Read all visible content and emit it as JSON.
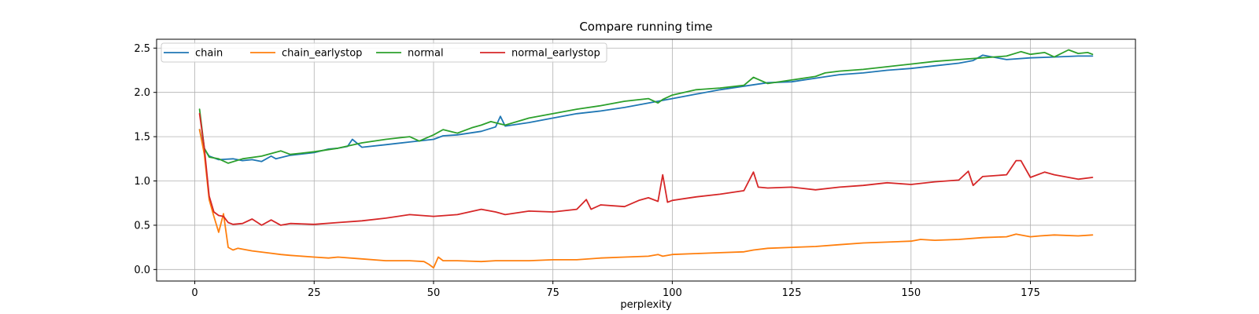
{
  "chart_data": {
    "type": "line",
    "title": "Compare running time",
    "xlabel": "perplexity",
    "ylabel": "",
    "xlim": [
      -8,
      197
    ],
    "ylim": [
      -0.13,
      2.6
    ],
    "xticks": [
      0,
      25,
      50,
      75,
      100,
      125,
      150,
      175
    ],
    "yticks": [
      0.0,
      0.5,
      1.0,
      1.5,
      2.0,
      2.5
    ],
    "grid": true,
    "legend_position": "top-left",
    "legend_columns": 4,
    "series": [
      {
        "name": "chain",
        "color": "#1f77b4",
        "x": [
          1,
          2,
          3,
          5,
          8,
          10,
          12,
          14,
          16,
          17,
          20,
          25,
          28,
          30,
          32,
          33,
          35,
          40,
          45,
          50,
          52,
          55,
          60,
          63,
          64,
          65,
          70,
          75,
          80,
          85,
          90,
          95,
          100,
          105,
          110,
          115,
          120,
          125,
          130,
          135,
          140,
          145,
          150,
          155,
          160,
          163,
          165,
          170,
          175,
          180,
          185,
          188
        ],
        "y": [
          1.58,
          1.36,
          1.28,
          1.24,
          1.25,
          1.23,
          1.24,
          1.22,
          1.28,
          1.25,
          1.29,
          1.32,
          1.36,
          1.37,
          1.39,
          1.47,
          1.38,
          1.41,
          1.44,
          1.47,
          1.51,
          1.52,
          1.56,
          1.61,
          1.73,
          1.62,
          1.66,
          1.71,
          1.76,
          1.79,
          1.83,
          1.88,
          1.93,
          1.98,
          2.03,
          2.07,
          2.11,
          2.12,
          2.16,
          2.2,
          2.22,
          2.25,
          2.27,
          2.3,
          2.33,
          2.36,
          2.42,
          2.37,
          2.39,
          2.4,
          2.41,
          2.41
        ]
      },
      {
        "name": "chain_earlystop",
        "color": "#ff7f0e",
        "x": [
          1,
          2,
          3,
          4,
          5,
          6,
          7,
          8,
          9,
          10,
          12,
          15,
          18,
          20,
          25,
          28,
          30,
          35,
          40,
          45,
          48,
          49,
          50,
          51,
          52,
          55,
          60,
          63,
          65,
          70,
          75,
          80,
          85,
          90,
          95,
          97,
          98,
          100,
          105,
          110,
          115,
          117,
          120,
          125,
          130,
          135,
          140,
          145,
          150,
          152,
          155,
          160,
          165,
          170,
          172,
          175,
          177,
          180,
          185,
          188
        ],
        "y": [
          1.58,
          1.3,
          0.79,
          0.6,
          0.42,
          0.63,
          0.25,
          0.22,
          0.24,
          0.23,
          0.21,
          0.19,
          0.17,
          0.16,
          0.14,
          0.13,
          0.14,
          0.12,
          0.1,
          0.1,
          0.09,
          0.06,
          0.02,
          0.14,
          0.1,
          0.1,
          0.09,
          0.1,
          0.1,
          0.1,
          0.11,
          0.11,
          0.13,
          0.14,
          0.15,
          0.17,
          0.15,
          0.17,
          0.18,
          0.19,
          0.2,
          0.22,
          0.24,
          0.25,
          0.26,
          0.28,
          0.3,
          0.31,
          0.32,
          0.34,
          0.33,
          0.34,
          0.36,
          0.37,
          0.4,
          0.37,
          0.38,
          0.39,
          0.38,
          0.39
        ]
      },
      {
        "name": "normal",
        "color": "#2ca02c",
        "x": [
          1,
          2,
          3,
          5,
          7,
          10,
          14,
          18,
          20,
          25,
          30,
          35,
          40,
          45,
          47,
          50,
          52,
          55,
          58,
          60,
          62,
          65,
          70,
          75,
          80,
          85,
          90,
          95,
          97,
          98,
          100,
          105,
          110,
          115,
          117,
          120,
          125,
          130,
          132,
          135,
          140,
          145,
          150,
          155,
          160,
          165,
          170,
          173,
          175,
          178,
          180,
          183,
          185,
          187,
          188
        ],
        "y": [
          1.81,
          1.37,
          1.27,
          1.25,
          1.2,
          1.25,
          1.28,
          1.34,
          1.3,
          1.33,
          1.37,
          1.43,
          1.47,
          1.5,
          1.45,
          1.52,
          1.58,
          1.54,
          1.6,
          1.63,
          1.67,
          1.63,
          1.71,
          1.76,
          1.81,
          1.85,
          1.9,
          1.93,
          1.88,
          1.92,
          1.97,
          2.03,
          2.05,
          2.08,
          2.17,
          2.1,
          2.14,
          2.18,
          2.22,
          2.24,
          2.26,
          2.29,
          2.32,
          2.35,
          2.37,
          2.39,
          2.41,
          2.46,
          2.43,
          2.45,
          2.4,
          2.48,
          2.44,
          2.45,
          2.43
        ]
      },
      {
        "name": "normal_earlystop",
        "color": "#d62728",
        "x": [
          1,
          2,
          3,
          4,
          5,
          6,
          7,
          8,
          10,
          12,
          14,
          16,
          18,
          20,
          25,
          30,
          35,
          40,
          45,
          50,
          55,
          60,
          63,
          65,
          70,
          75,
          80,
          82,
          83,
          85,
          90,
          93,
          95,
          97,
          98,
          99,
          100,
          105,
          110,
          115,
          117,
          118,
          120,
          125,
          130,
          135,
          140,
          145,
          150,
          155,
          160,
          162,
          163,
          165,
          170,
          172,
          173,
          175,
          178,
          180,
          185,
          188
        ],
        "y": [
          1.76,
          1.37,
          0.83,
          0.65,
          0.61,
          0.6,
          0.53,
          0.51,
          0.52,
          0.57,
          0.5,
          0.56,
          0.5,
          0.52,
          0.51,
          0.53,
          0.55,
          0.58,
          0.62,
          0.6,
          0.62,
          0.68,
          0.65,
          0.62,
          0.66,
          0.65,
          0.68,
          0.79,
          0.68,
          0.73,
          0.71,
          0.78,
          0.81,
          0.77,
          1.07,
          0.76,
          0.78,
          0.82,
          0.85,
          0.89,
          1.1,
          0.93,
          0.92,
          0.93,
          0.9,
          0.93,
          0.95,
          0.98,
          0.96,
          0.99,
          1.01,
          1.11,
          0.95,
          1.05,
          1.07,
          1.23,
          1.23,
          1.04,
          1.1,
          1.07,
          1.02,
          1.04
        ]
      }
    ]
  }
}
